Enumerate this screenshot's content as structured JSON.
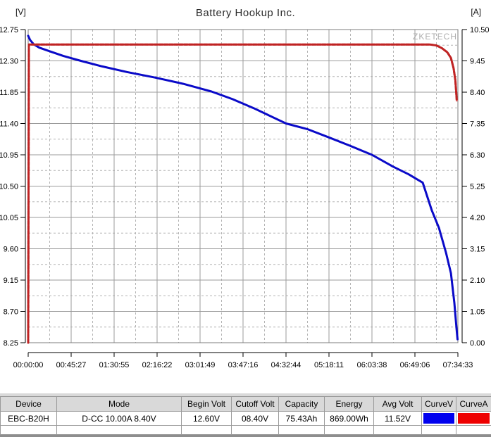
{
  "watermark": "ZKETECH",
  "chart_data": {
    "type": "line",
    "title": "Battery Hookup Inc.",
    "left_axis": {
      "label": "[V]",
      "min": 8.25,
      "max": 12.75,
      "ticks": [
        "12.75",
        "12.30",
        "11.85",
        "11.40",
        "10.95",
        "10.50",
        "10.05",
        "9.60",
        "9.15",
        "8.70",
        "8.25"
      ]
    },
    "right_axis": {
      "label": "[A]",
      "min": 0.0,
      "max": 10.5,
      "ticks": [
        "10.50",
        "9.45",
        "8.40",
        "7.35",
        "6.30",
        "5.25",
        "4.20",
        "3.15",
        "2.10",
        "1.05",
        "0.00"
      ]
    },
    "x_axis": {
      "total_seconds": 27273,
      "ticks": [
        "00:00:00",
        "00:45:27",
        "01:30:55",
        "02:16:22",
        "03:01:49",
        "03:47:16",
        "04:32:44",
        "05:18:11",
        "06:03:38",
        "06:49:06",
        "07:34:33"
      ]
    },
    "grid": {
      "major_color": "#9b9b9b",
      "minor_color": "#b4b4b4",
      "border_color": "#7d7d7d"
    },
    "series": [
      {
        "name": "Voltage",
        "axis": "left",
        "color": "#0a0ac8",
        "points": [
          [
            0,
            12.66
          ],
          [
            120,
            12.6
          ],
          [
            350,
            12.54
          ],
          [
            700,
            12.49
          ],
          [
            1340,
            12.44
          ],
          [
            2240,
            12.37
          ],
          [
            3350,
            12.3
          ],
          [
            4700,
            12.22
          ],
          [
            6260,
            12.14
          ],
          [
            8050,
            12.06
          ],
          [
            9840,
            11.97
          ],
          [
            11630,
            11.86
          ],
          [
            12970,
            11.75
          ],
          [
            14310,
            11.62
          ],
          [
            16370,
            11.4
          ],
          [
            17710,
            11.32
          ],
          [
            19090,
            11.2
          ],
          [
            20430,
            11.08
          ],
          [
            21820,
            10.95
          ],
          [
            23160,
            10.78
          ],
          [
            24150,
            10.67
          ],
          [
            25040,
            10.55
          ],
          [
            25620,
            10.15
          ],
          [
            26070,
            9.9
          ],
          [
            26520,
            9.54
          ],
          [
            26830,
            9.25
          ],
          [
            27050,
            8.82
          ],
          [
            27190,
            8.45
          ],
          [
            27250,
            8.3
          ]
        ]
      },
      {
        "name": "Current",
        "axis": "right",
        "color": "#bf2323",
        "color_light": "#e57e7e",
        "dash": [
          5,
          2
        ],
        "points": [
          [
            0,
            0.0
          ],
          [
            45,
            10.0
          ],
          [
            25490,
            10.0
          ],
          [
            25900,
            9.97
          ],
          [
            26250,
            9.88
          ],
          [
            26600,
            9.74
          ],
          [
            26830,
            9.55
          ],
          [
            27000,
            9.2
          ],
          [
            27110,
            8.8
          ],
          [
            27200,
            8.12
          ]
        ]
      }
    ]
  },
  "table": {
    "headers": [
      "Device",
      "Mode",
      "Begin Volt",
      "Cutoff Volt",
      "Capacity",
      "Energy",
      "Avg Volt",
      "CurveV",
      "CurveA"
    ],
    "row": {
      "device": "EBC-B20H",
      "mode": "D-CC 10.00A 8.40V",
      "begin_volt": "12.60V",
      "cutoff_volt": "08.40V",
      "capacity": "75.43Ah",
      "energy": "869.00Wh",
      "avg_volt": "11.52V",
      "curve_v_color": "#0000ee",
      "curve_a_color": "#ee0000"
    }
  }
}
